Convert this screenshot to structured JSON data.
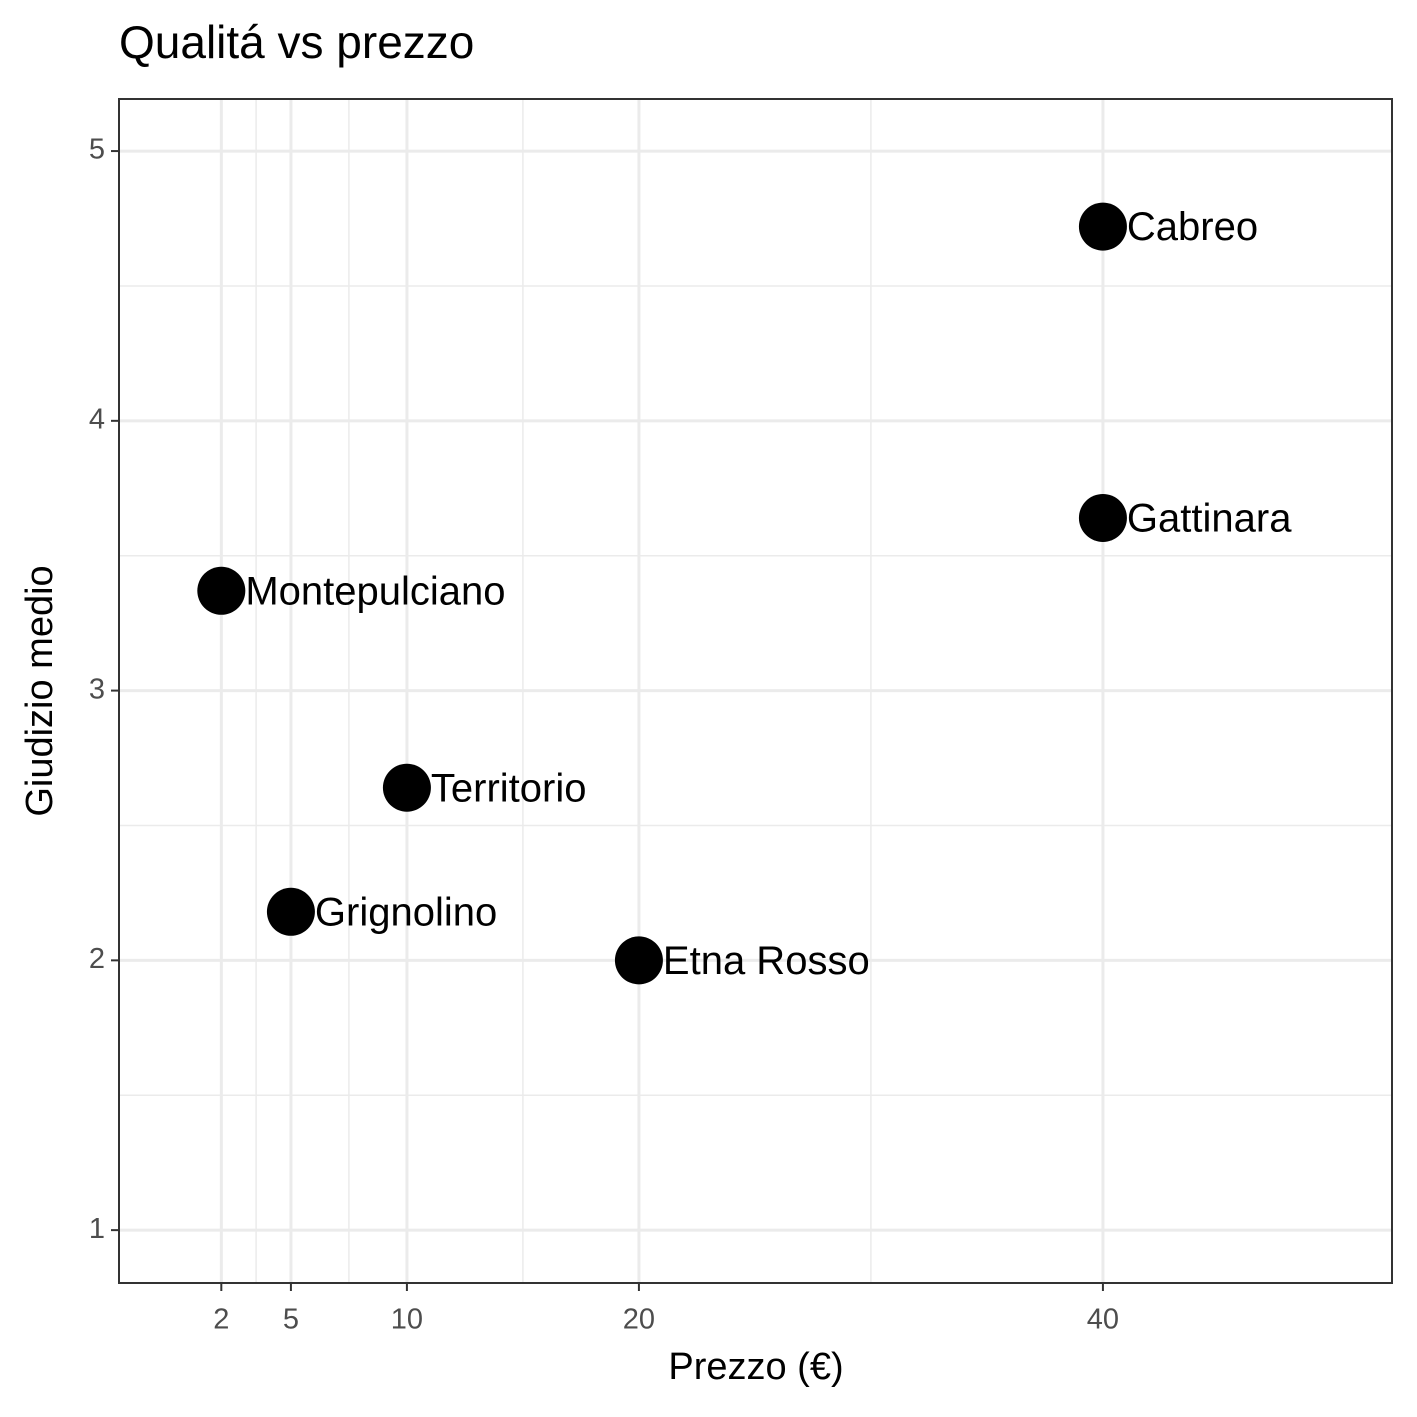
{
  "chart_data": {
    "type": "scatter",
    "title": "Qualitá vs prezzo",
    "x_label": "Prezzo (€)",
    "y_label": "Giudizio medio",
    "x": [
      40,
      40,
      2,
      10,
      5,
      20
    ],
    "values": [
      4.72,
      3.64,
      3.37,
      2.64,
      2.18,
      2.0
    ],
    "point_labels": [
      "Cabreo",
      "Gattinara",
      "Montepulciano",
      "Territorio",
      "Grignolino",
      "Etna Rosso"
    ],
    "color": "#000000",
    "xlim": [
      -2.41,
      52.46
    ],
    "ylim": [
      0.804,
      5.193
    ],
    "xticks": [
      2,
      5,
      10,
      20,
      40
    ],
    "yticks": [
      1,
      2,
      3,
      4,
      5
    ],
    "grid": true
  }
}
